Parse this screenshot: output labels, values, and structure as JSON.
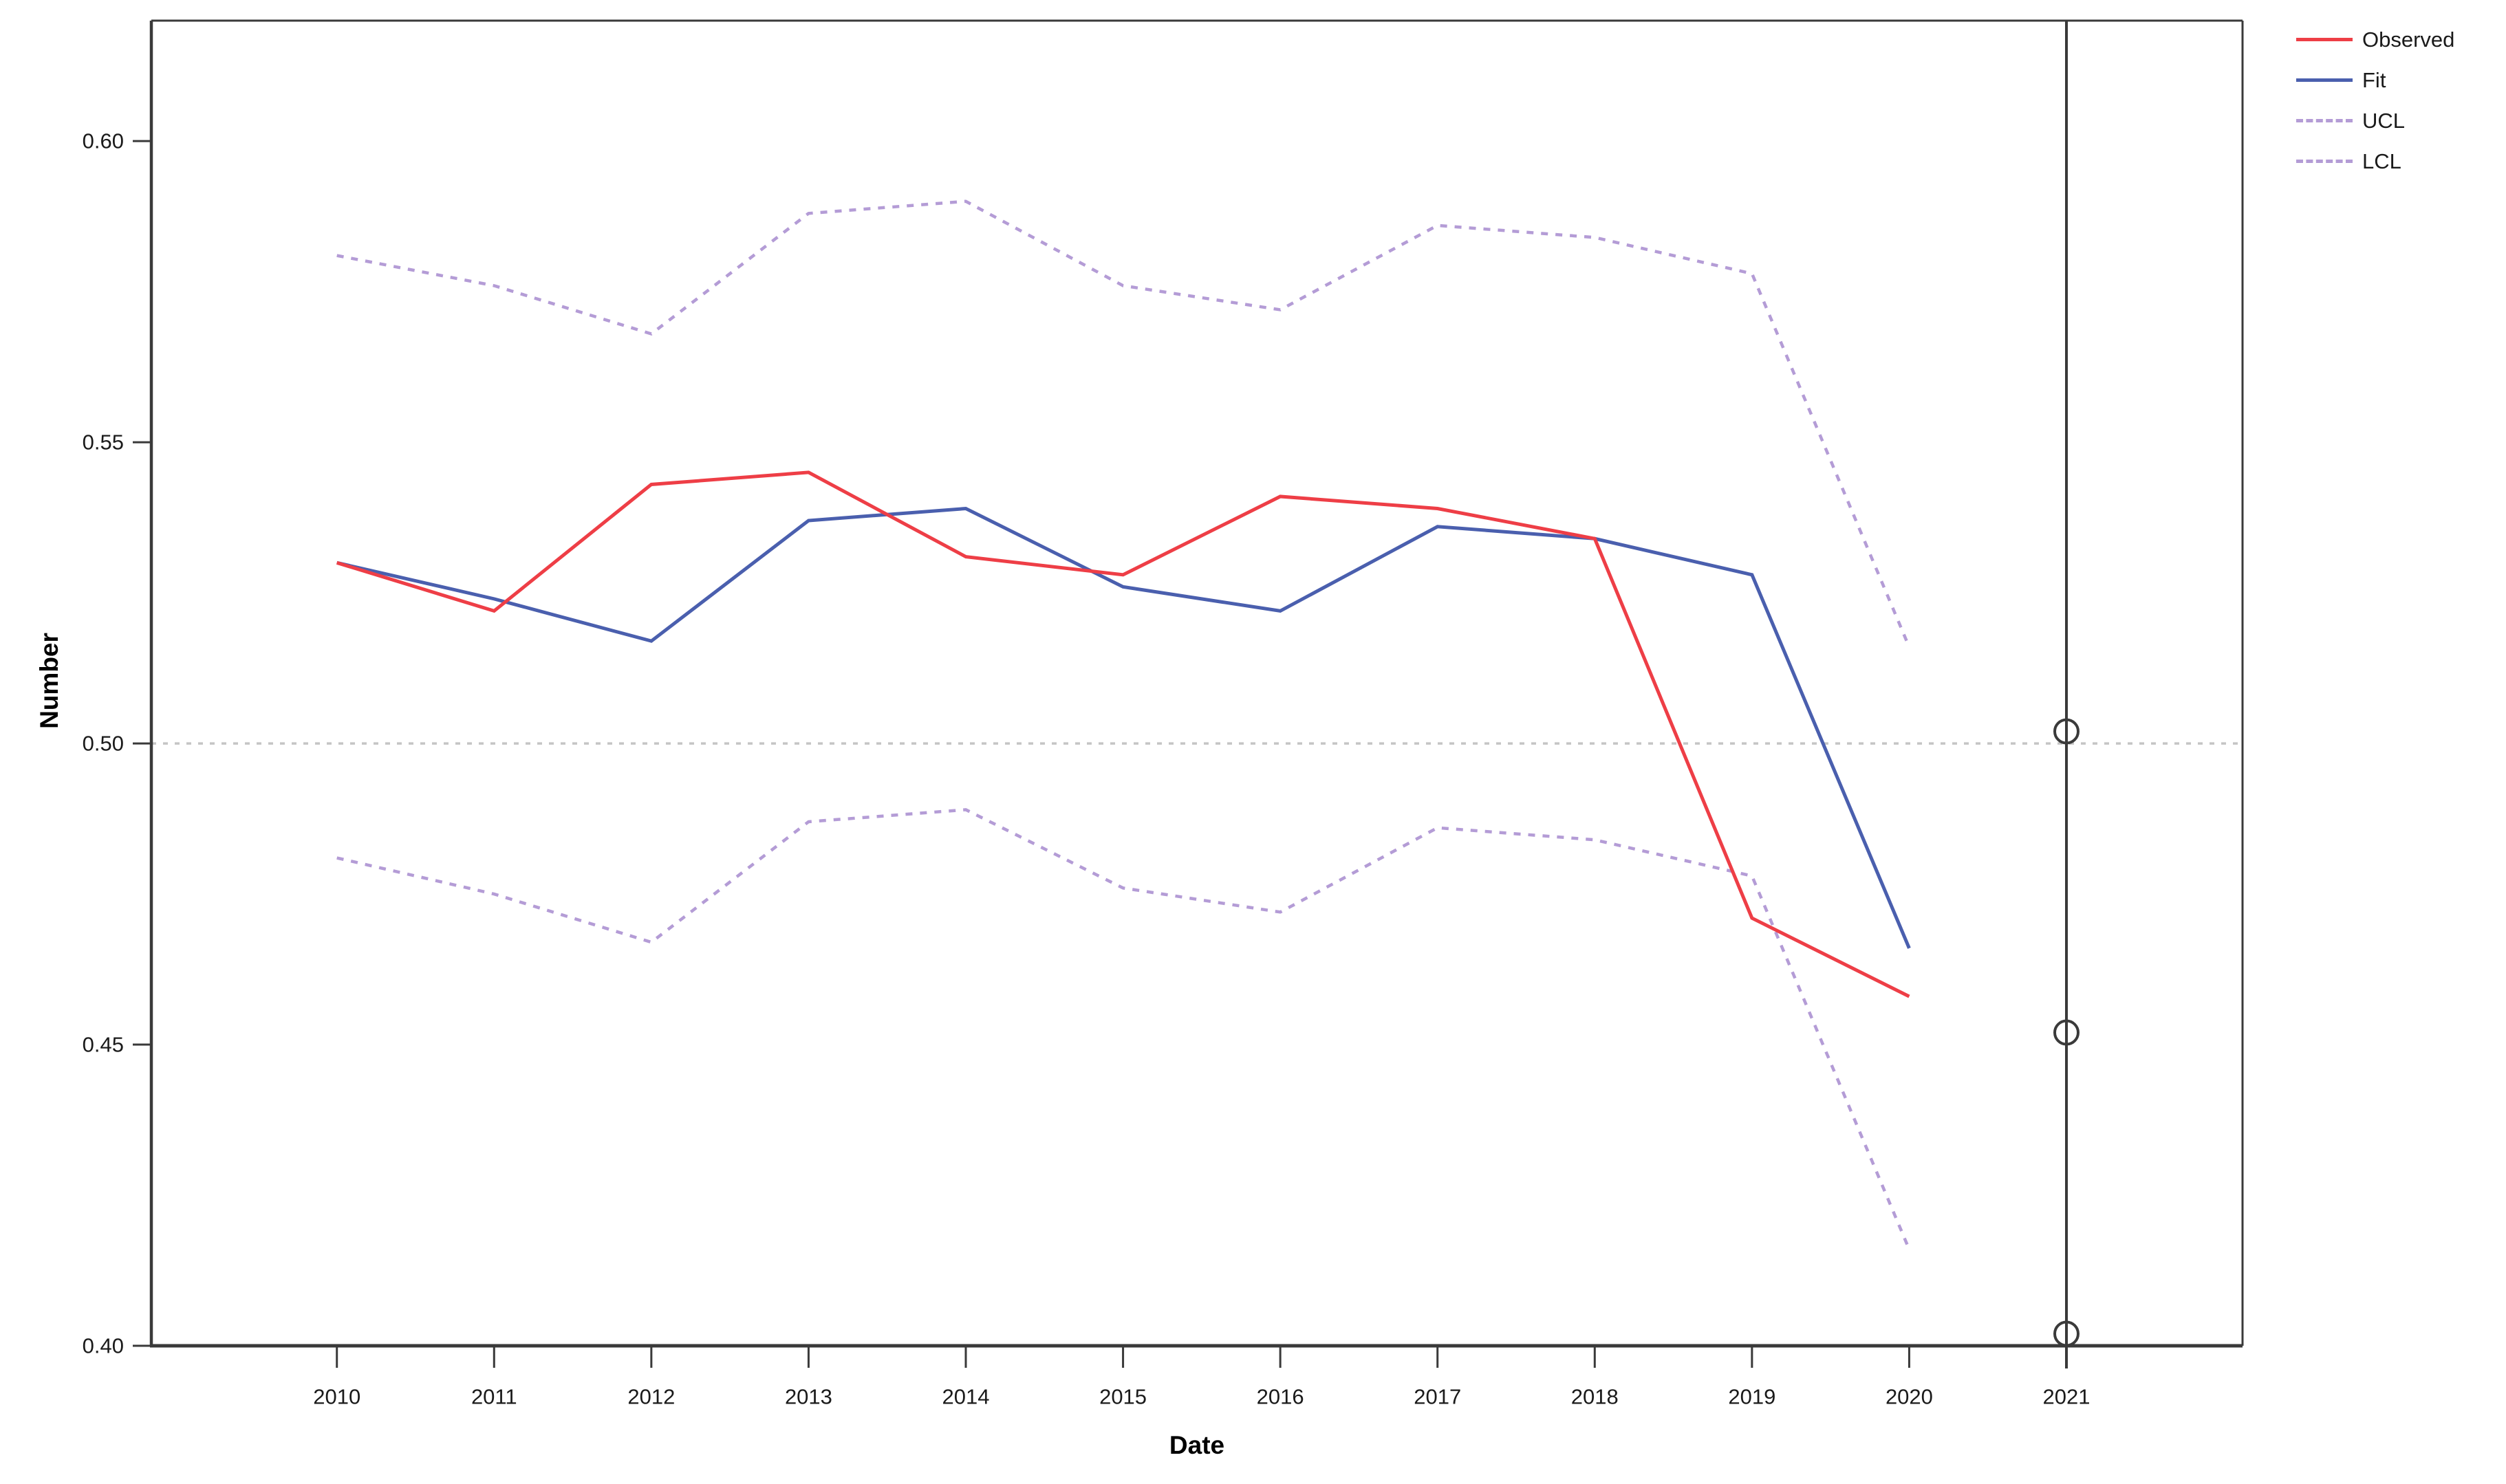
{
  "chart_data": {
    "type": "line",
    "title": "",
    "xlabel": "Date",
    "ylabel": "Number",
    "x": [
      2010,
      2011,
      2012,
      2013,
      2014,
      2015,
      2016,
      2017,
      2018,
      2019,
      2020
    ],
    "series": [
      {
        "name": "UCL",
        "color": "#b49cd6",
        "style": "dashed",
        "values": [
          0.581,
          0.576,
          0.568,
          0.588,
          0.59,
          0.576,
          0.572,
          0.586,
          0.584,
          0.578,
          0.516
        ]
      },
      {
        "name": "LCL",
        "color": "#b49cd6",
        "style": "dashed",
        "values": [
          0.481,
          0.475,
          0.467,
          0.487,
          0.489,
          0.476,
          0.472,
          0.486,
          0.484,
          0.478,
          0.416
        ]
      },
      {
        "name": "Fit",
        "color": "#4a5fae",
        "style": "solid",
        "values": [
          0.53,
          0.524,
          0.517,
          0.537,
          0.539,
          0.526,
          0.522,
          0.536,
          0.534,
          0.528,
          0.466
        ]
      },
      {
        "name": "Observed",
        "color": "#ee3e46",
        "style": "solid",
        "values": [
          0.53,
          0.522,
          0.543,
          0.545,
          0.531,
          0.528,
          0.541,
          0.539,
          0.534,
          0.471,
          0.458
        ]
      }
    ],
    "forecast_markers": {
      "x": 2021,
      "values": [
        0.502,
        0.452,
        0.402
      ]
    },
    "vertical_line_x": 2021,
    "reference_line_y": 0.5,
    "x_ticks": [
      2010,
      2011,
      2012,
      2013,
      2014,
      2015,
      2016,
      2017,
      2018,
      2019,
      2020,
      2021
    ],
    "x_tick_labels": [
      "2010",
      "2011",
      "2012",
      "2013",
      "2014",
      "2015",
      "2016",
      "2017",
      "2018",
      "2019",
      "2020",
      "2021"
    ],
    "y_ticks": [
      0.4,
      0.45,
      0.5,
      0.55,
      0.6
    ],
    "y_tick_labels": [
      "0.40",
      "0.45",
      "0.50",
      "0.55",
      "0.60"
    ],
    "xlim": [
      2008.82,
      2022.12
    ],
    "ylim": [
      0.4,
      0.62
    ],
    "grid": false,
    "legend_position": "top-right"
  },
  "legend": {
    "items": [
      {
        "label": "Observed",
        "color": "#ee3e46",
        "style": "solid"
      },
      {
        "label": "Fit",
        "color": "#4a5fae",
        "style": "solid"
      },
      {
        "label": "UCL",
        "color": "#b49cd6",
        "style": "dashed"
      },
      {
        "label": "LCL",
        "color": "#b49cd6",
        "style": "dashed"
      }
    ]
  },
  "colors": {
    "frame": "#3a3a3a",
    "reference_line": "#c5c5c5",
    "marker_stroke": "#3a3a3a",
    "tick_text": "#1a1a1a",
    "background": "#ffffff"
  }
}
